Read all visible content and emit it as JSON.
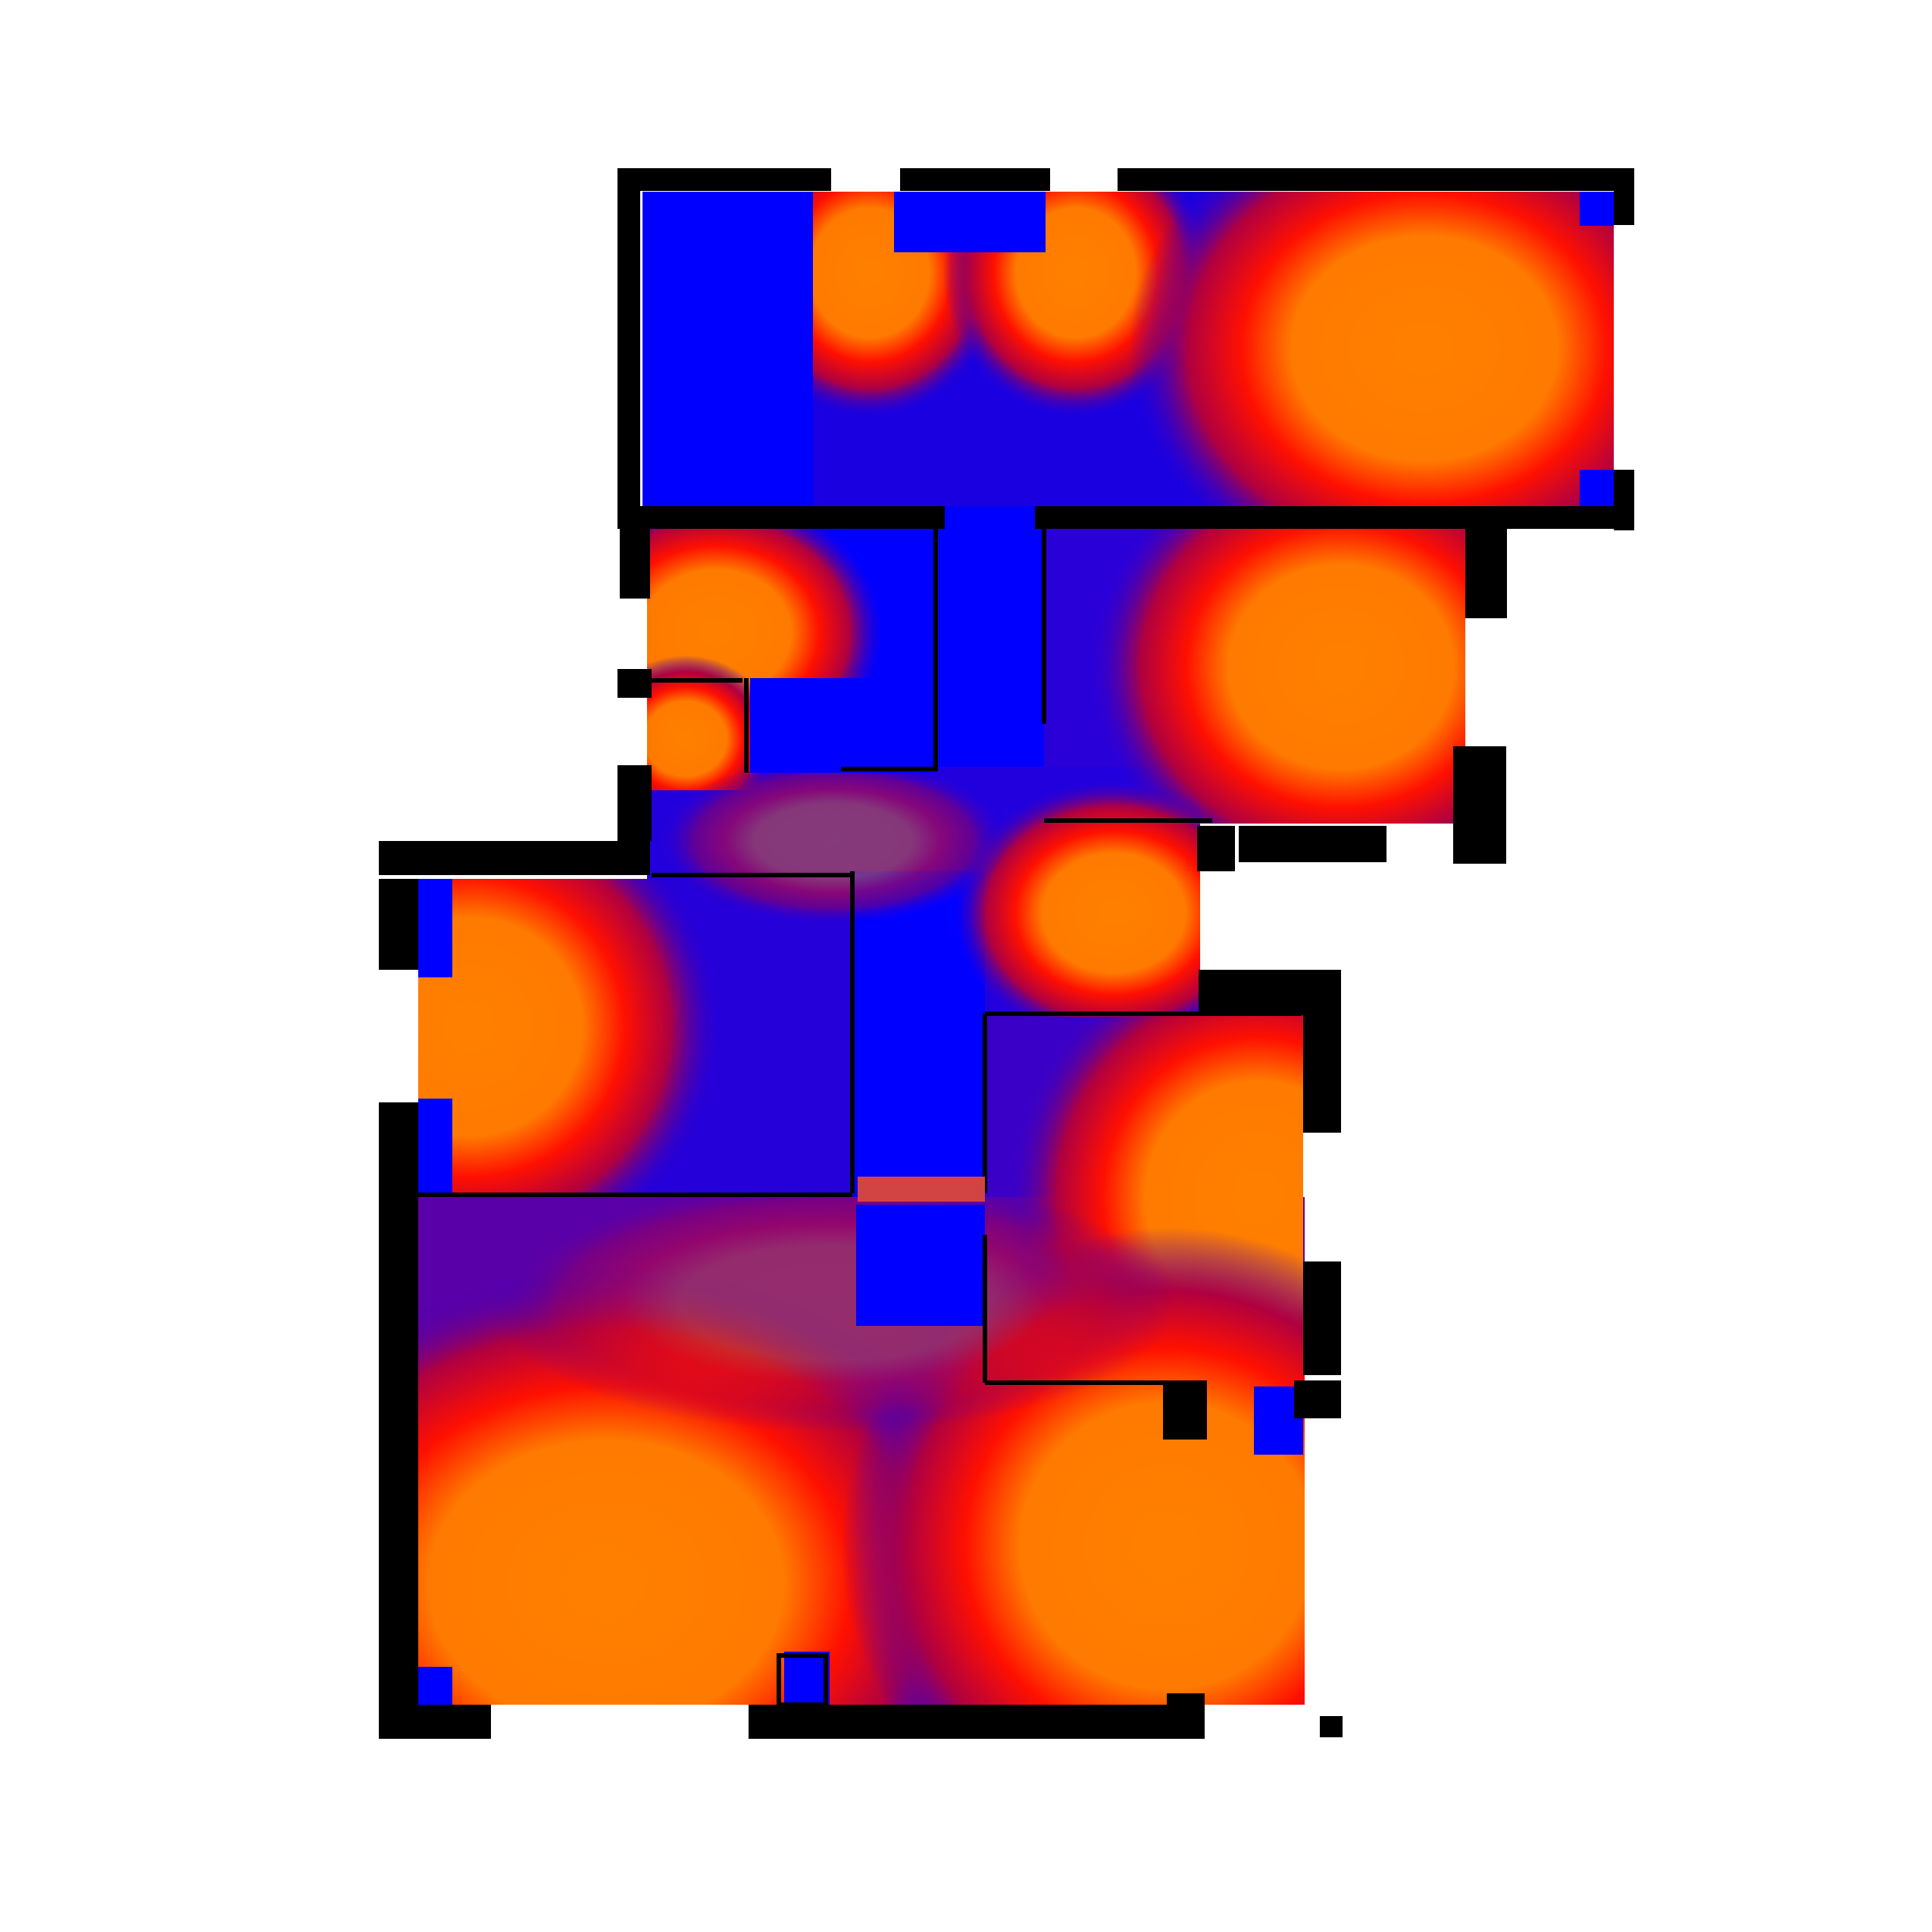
{
  "colors": {
    "background": "#ffffff",
    "cold": "#0000ff",
    "mid_cold": "#3300cc",
    "mid": "#ff0000",
    "hot": "#ff8000",
    "wall": "#000000",
    "marker": "#d24444"
  },
  "scale": {
    "low_color": "blue",
    "high_color": "orange",
    "gradient": [
      "#0000ff",
      "#3300cc",
      "#ff0000",
      "#ff8000"
    ]
  },
  "rooms": [
    {
      "id": "top-room",
      "sources": 4
    },
    {
      "id": "left-small-room",
      "sources": 2
    },
    {
      "id": "right-upper-room",
      "sources": 1
    },
    {
      "id": "corridor",
      "sources": 1
    },
    {
      "id": "left-middle-room",
      "sources": 1
    },
    {
      "id": "right-middle-room",
      "sources": 1
    },
    {
      "id": "bottom-room",
      "sources": 2
    }
  ]
}
